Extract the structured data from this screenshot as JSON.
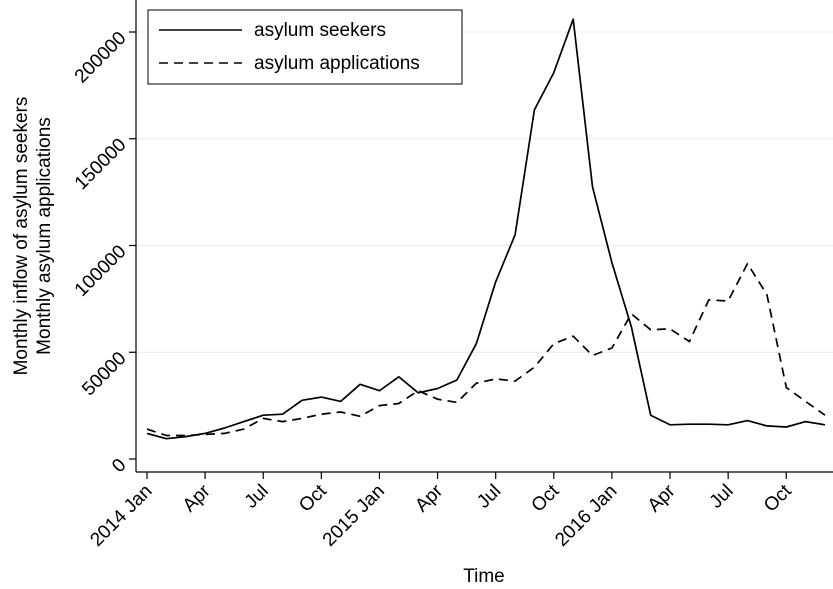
{
  "chart_data": {
    "type": "line",
    "xlabel": "Time",
    "ylabel_lines": [
      "Monthly inflow of asylum seekers",
      "Monthly asylum applications"
    ],
    "ylim": [
      0,
      210000
    ],
    "yticks": [
      0,
      50000,
      100000,
      150000,
      200000
    ],
    "ytick_labels": [
      "0",
      "50000",
      "100000",
      "150000",
      "200000"
    ],
    "xlim": [
      "2014-01",
      "2016-12"
    ],
    "xticks": [
      "2014-01",
      "2014-04",
      "2014-07",
      "2014-10",
      "2015-01",
      "2015-04",
      "2015-07",
      "2015-10",
      "2016-01",
      "2016-04",
      "2016-07",
      "2016-10"
    ],
    "xtick_labels": [
      "2014 Jan",
      "Apr",
      "Jul",
      "Oct",
      "2015 Jan",
      "Apr",
      "Jul",
      "Oct",
      "2016 Jan",
      "Apr",
      "Jul",
      "Oct"
    ],
    "grid": "horizontal",
    "legend_position": "top-left",
    "x": [
      "2014-01",
      "2014-02",
      "2014-03",
      "2014-04",
      "2014-05",
      "2014-06",
      "2014-07",
      "2014-08",
      "2014-09",
      "2014-10",
      "2014-11",
      "2014-12",
      "2015-01",
      "2015-02",
      "2015-03",
      "2015-04",
      "2015-05",
      "2015-06",
      "2015-07",
      "2015-08",
      "2015-09",
      "2015-10",
      "2015-11",
      "2015-12",
      "2016-01",
      "2016-02",
      "2016-03",
      "2016-04",
      "2016-05",
      "2016-06",
      "2016-07",
      "2016-08",
      "2016-09",
      "2016-10",
      "2016-11",
      "2016-12"
    ],
    "series": [
      {
        "name": "asylum seekers",
        "dash": "solid",
        "color": "#000000",
        "values": [
          12000,
          9500,
          10500,
          12000,
          14500,
          17500,
          20500,
          21000,
          27500,
          29000,
          27000,
          35000,
          32000,
          38500,
          31000,
          33000,
          37000,
          54000,
          83000,
          105000,
          163500,
          181000,
          206000,
          127500,
          92000,
          62000,
          20500,
          16000,
          16300,
          16300,
          16000,
          18000,
          15500,
          15000,
          17500,
          16000
        ]
      },
      {
        "name": "asylum applications",
        "dash": "dashed",
        "color": "#000000",
        "values": [
          14000,
          11000,
          11000,
          11500,
          12000,
          14000,
          19000,
          17500,
          19000,
          21000,
          22000,
          20000,
          25000,
          26000,
          32000,
          28000,
          26500,
          35500,
          37500,
          36500,
          43000,
          54000,
          57500,
          48500,
          52000,
          68000,
          60500,
          61000,
          55000,
          74500,
          74000,
          91500,
          77000,
          33500,
          27000,
          20500
        ]
      }
    ]
  }
}
